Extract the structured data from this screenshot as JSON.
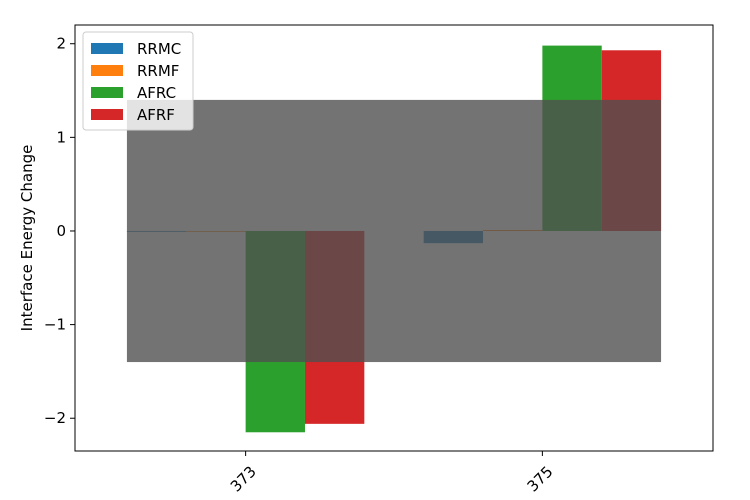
{
  "chart_data": {
    "type": "bar",
    "categories": [
      "373",
      "375"
    ],
    "series": [
      {
        "name": "RRMC",
        "color": "#1f77b4",
        "values": [
          0.0,
          -0.13
        ]
      },
      {
        "name": "RRMF",
        "color": "#ff7f0e",
        "values": [
          0.0,
          0.01
        ]
      },
      {
        "name": "AFRC",
        "color": "#2ca02c",
        "values": [
          -2.15,
          1.98
        ]
      },
      {
        "name": "AFRF",
        "color": "#d62728",
        "values": [
          -2.06,
          1.93
        ]
      }
    ],
    "ylabel": "Interface Energy Change",
    "xlabel": "",
    "ylim": [
      -2.35,
      2.2
    ],
    "yticks": [
      2,
      1,
      0,
      -1,
      -2
    ],
    "ytick_labels": [
      "2",
      "1",
      "0",
      "−1",
      "−2"
    ],
    "legend_position": "top-left",
    "grid": false,
    "overlay_band": {
      "y_from": -1.4,
      "y_to": 1.4,
      "color": "#505050",
      "opacity": 0.8
    },
    "x_tick_rotation": 45
  }
}
